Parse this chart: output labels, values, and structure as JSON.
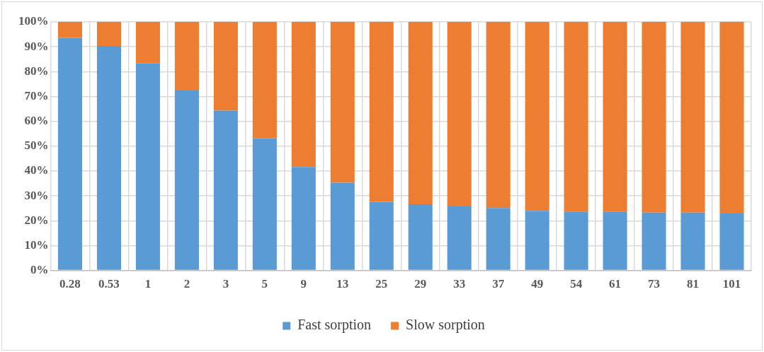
{
  "chart_data": {
    "type": "bar",
    "stacked": true,
    "categories": [
      "0.28",
      "0.53",
      "1",
      "2",
      "3",
      "5",
      "9",
      "13",
      "25",
      "29",
      "33",
      "37",
      "49",
      "54",
      "61",
      "73",
      "81",
      "101"
    ],
    "series": [
      {
        "name": "Fast sorption",
        "color": "#5b9bd5",
        "values": [
          93.6,
          90.3,
          83.3,
          72.4,
          64.3,
          53.2,
          41.6,
          35.3,
          27.6,
          26.6,
          25.8,
          25.1,
          24,
          23.7,
          23.7,
          23.3,
          23.3,
          22.9
        ]
      },
      {
        "name": "Slow sorption",
        "color": "#ed7d31",
        "values": [
          6.4,
          9.7,
          16.7,
          27.6,
          35.7,
          46.8,
          58.4,
          64.7,
          72.4,
          73.4,
          74.2,
          74.9,
          76,
          76.3,
          76.3,
          76.7,
          76.7,
          77.1
        ]
      }
    ],
    "ylim": [
      0,
      100
    ],
    "yticks": [
      {
        "value": 0,
        "label": "0%"
      },
      {
        "value": 10,
        "label": "10%"
      },
      {
        "value": 20,
        "label": "20%"
      },
      {
        "value": 30,
        "label": "30%"
      },
      {
        "value": 40,
        "label": "40%"
      },
      {
        "value": 50,
        "label": "50%"
      },
      {
        "value": 60,
        "label": "60%"
      },
      {
        "value": 70,
        "label": "70%"
      },
      {
        "value": 80,
        "label": "80%"
      },
      {
        "value": 90,
        "label": "90%"
      },
      {
        "value": 100,
        "label": "100%"
      }
    ],
    "grid": true,
    "legend": "bottom"
  }
}
